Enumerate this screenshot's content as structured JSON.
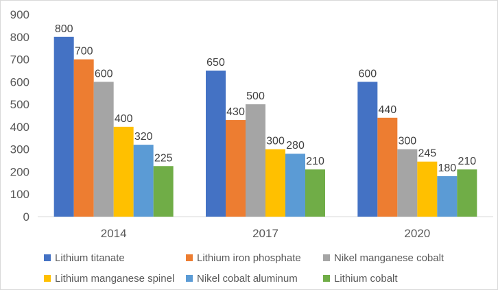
{
  "chart_data": {
    "type": "bar",
    "title": "",
    "xlabel": "",
    "ylabel": "",
    "categories": [
      "2014",
      "2017",
      "2020"
    ],
    "series": [
      {
        "name": "Lithium titanate",
        "color": "#4472C4",
        "values": [
          800,
          650,
          600
        ]
      },
      {
        "name": "Lithium iron phosphate",
        "color": "#ED7D31",
        "values": [
          700,
          430,
          440
        ]
      },
      {
        "name": "Nikel manganese cobalt",
        "color": "#A5A5A5",
        "values": [
          600,
          500,
          300
        ]
      },
      {
        "name": "Lithium manganese spinel",
        "color": "#FFC000",
        "values": [
          400,
          300,
          245
        ]
      },
      {
        "name": "Nikel cobalt aluminum",
        "color": "#5B9BD5",
        "values": [
          320,
          280,
          180
        ]
      },
      {
        "name": "Lithium cobalt",
        "color": "#70AD47",
        "values": [
          225,
          210,
          210
        ]
      }
    ],
    "ylim": [
      0,
      900
    ],
    "yticks": [
      0,
      100,
      200,
      300,
      400,
      500,
      600,
      700,
      800,
      900
    ],
    "data_labels": true,
    "grid": false,
    "legend": "bottom"
  }
}
